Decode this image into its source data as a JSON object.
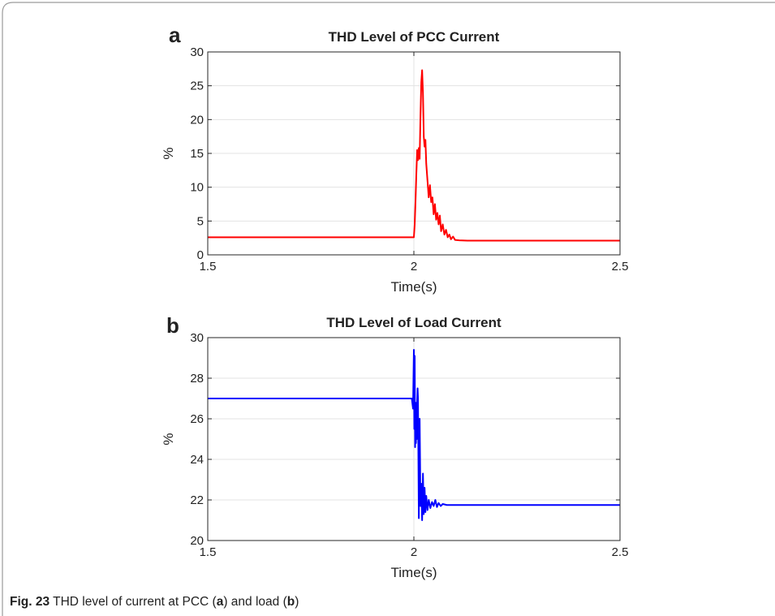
{
  "caption": {
    "fig_label": "Fig. 23",
    "text_1": " THD level of current at PCC (",
    "ref_a": "a",
    "text_2": ") and load (",
    "ref_b": "b",
    "text_3": ")"
  },
  "chart_data": [
    {
      "type": "line",
      "panel_label": "a",
      "title": "THD Level of PCC Current",
      "xlabel": "Time(s)",
      "ylabel": "%",
      "xlim": [
        1.5,
        2.5
      ],
      "ylim": [
        0,
        30
      ],
      "xticks": [
        1.5,
        2,
        2.5
      ],
      "xtick_labels": [
        "1.5",
        "2",
        "2.5"
      ],
      "yticks": [
        0,
        5,
        10,
        15,
        20,
        25,
        30
      ],
      "ytick_labels": [
        "0",
        "5",
        "10",
        "15",
        "20",
        "25",
        "30"
      ],
      "grid": true,
      "color": "#ff0000",
      "series": [
        {
          "x": [
            1.5,
            1.6,
            1.7,
            1.8,
            1.9,
            1.995,
            2.0,
            2.002,
            2.004,
            2.006,
            2.008,
            2.01,
            2.012,
            2.014,
            2.016,
            2.018,
            2.02,
            2.022,
            2.024,
            2.026,
            2.028,
            2.03,
            2.033,
            2.036,
            2.039,
            2.042,
            2.045,
            2.048,
            2.051,
            2.054,
            2.057,
            2.06,
            2.063,
            2.066,
            2.07,
            2.074,
            2.078,
            2.082,
            2.086,
            2.09,
            2.095,
            2.1,
            2.11,
            2.13,
            2.2,
            2.3,
            2.4,
            2.5
          ],
          "y": [
            2.6,
            2.6,
            2.6,
            2.6,
            2.6,
            2.6,
            2.6,
            4.5,
            8.0,
            12.0,
            15.5,
            14.0,
            15.8,
            14.2,
            20.5,
            25.5,
            27.3,
            24.0,
            17.5,
            16.0,
            17.0,
            13.5,
            11.0,
            8.5,
            10.3,
            7.8,
            8.5,
            6.0,
            7.5,
            5.2,
            6.2,
            4.5,
            5.8,
            3.5,
            4.5,
            3.0,
            3.7,
            2.6,
            3.0,
            2.3,
            2.7,
            2.2,
            2.15,
            2.1,
            2.1,
            2.1,
            2.1,
            2.1
          ]
        }
      ]
    },
    {
      "type": "line",
      "panel_label": "b",
      "title": "THD Level of Load Current",
      "xlabel": "Time(s)",
      "ylabel": "%",
      "xlim": [
        1.5,
        2.5
      ],
      "ylim": [
        20,
        30
      ],
      "xticks": [
        1.5,
        2,
        2.5
      ],
      "xtick_labels": [
        "1.5",
        "2",
        "2.5"
      ],
      "yticks": [
        20,
        22,
        24,
        26,
        28,
        30
      ],
      "ytick_labels": [
        "20",
        "22",
        "24",
        "26",
        "28",
        "30"
      ],
      "grid": true,
      "color": "#0000ff",
      "series": [
        {
          "x": [
            1.5,
            1.6,
            1.7,
            1.8,
            1.9,
            1.995,
            1.998,
            2.0,
            2.001,
            2.002,
            2.003,
            2.004,
            2.005,
            2.006,
            2.007,
            2.008,
            2.009,
            2.01,
            2.012,
            2.014,
            2.016,
            2.018,
            2.02,
            2.022,
            2.024,
            2.026,
            2.028,
            2.03,
            2.033,
            2.036,
            2.04,
            2.044,
            2.048,
            2.052,
            2.056,
            2.06,
            2.065,
            2.07,
            2.08,
            2.1,
            2.2,
            2.3,
            2.4,
            2.5
          ],
          "y": [
            27.0,
            27.0,
            27.0,
            27.0,
            27.0,
            27.0,
            26.5,
            29.4,
            25.5,
            29.1,
            24.6,
            26.8,
            24.8,
            25.6,
            25.0,
            26.9,
            27.5,
            27.0,
            21.1,
            26.0,
            21.7,
            22.8,
            21.0,
            23.3,
            21.3,
            22.6,
            21.4,
            22.2,
            21.5,
            22.0,
            21.6,
            21.9,
            21.7,
            22.0,
            21.65,
            21.85,
            21.7,
            21.8,
            21.75,
            21.75,
            21.75,
            21.75,
            21.75,
            21.75
          ]
        }
      ]
    }
  ]
}
